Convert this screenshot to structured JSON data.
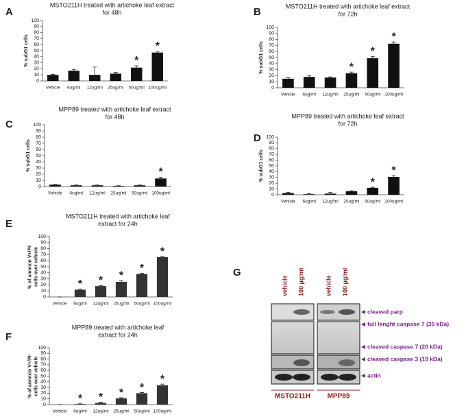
{
  "chart_data": [
    {
      "type": "bar",
      "label": "A",
      "title": [
        "MSTO211H treated with artichoke leaf extract",
        "for 48h"
      ],
      "ylabel": [
        "% subG1 cells"
      ],
      "categories": [
        "Vehicle",
        "6ug/ml",
        "12ug/ml",
        "25ug/ml",
        "50ug/ml",
        "100ug/ml"
      ],
      "values": [
        10,
        17,
        10,
        12,
        22,
        47
      ],
      "errors": [
        1,
        2,
        13,
        2,
        3,
        2
      ],
      "significance_marker": "*",
      "significant": [
        false,
        false,
        false,
        false,
        true,
        true
      ],
      "color": "#111111",
      "ylim": [
        0,
        100
      ],
      "yticks": [
        0,
        10,
        20,
        30,
        40,
        50,
        60,
        70,
        80,
        90,
        100
      ]
    },
    {
      "type": "bar",
      "label": "B",
      "title": [
        "MSTO211H treated with artichoke leaf extract",
        "for 72h"
      ],
      "ylabel": [
        "% subG1 cells"
      ],
      "categories": [
        "Vehicle",
        "6ug/ml",
        "12ug/ml",
        "25ug/ml",
        "50ug/ml",
        "100ug/ml"
      ],
      "values": [
        15,
        18,
        17,
        24,
        49,
        73
      ],
      "errors": [
        2,
        2,
        1,
        2,
        3,
        3
      ],
      "significance_marker": "*",
      "significant": [
        false,
        false,
        false,
        true,
        true,
        true
      ],
      "color": "#111111",
      "ylim": [
        0,
        100
      ],
      "yticks": [
        0,
        10,
        20,
        30,
        40,
        50,
        60,
        70,
        80,
        90,
        100
      ]
    },
    {
      "type": "bar",
      "label": "C",
      "title": [
        "MPP89 treated with artichoke leaf extract",
        "for 48h"
      ],
      "ylabel": [
        "% subG1 cells"
      ],
      "categories": [
        "Vehicle",
        "6ug/ml",
        "12ug/ml",
        "25ug/ml",
        "50ug/ml",
        "100ug/ml"
      ],
      "values": [
        3,
        2,
        2,
        1,
        2,
        13
      ],
      "errors": [
        0.5,
        0.5,
        0.5,
        0.3,
        0.5,
        2
      ],
      "significance_marker": "*",
      "significant": [
        false,
        false,
        false,
        false,
        false,
        true
      ],
      "color": "#111111",
      "ylim": [
        0,
        100
      ],
      "yticks": [
        0,
        10,
        20,
        30,
        40,
        50,
        60,
        70,
        80,
        90,
        100
      ]
    },
    {
      "type": "bar",
      "label": "D",
      "title": [
        "MPP89 treated with artichoke leaf extract",
        "for 72h"
      ],
      "ylabel": [
        "% subG1 cells"
      ],
      "categories": [
        "Vehicle",
        "6ug/ml",
        "12ug/ml",
        "25ug/ml",
        "50ug/ml",
        "100ug/ml"
      ],
      "values": [
        3,
        1,
        2,
        6,
        12,
        31
      ],
      "errors": [
        1,
        1,
        2,
        1,
        1,
        2
      ],
      "significance_marker": "*",
      "significant": [
        false,
        false,
        false,
        false,
        true,
        true
      ],
      "color": "#111111",
      "ylim": [
        0,
        100
      ],
      "yticks": [
        0,
        10,
        20,
        30,
        40,
        50,
        60,
        70,
        80,
        90,
        100
      ]
    },
    {
      "type": "bar",
      "label": "E",
      "title": [
        "MSTO211H treated with artichoke leaf",
        "extract for 24h"
      ],
      "ylabel": [
        "% of annexin V+/PI-",
        "cells over vehicle"
      ],
      "categories": [
        "Vehicle",
        "6ug/ml",
        "12ug/ml",
        "25ug/ml",
        "50ug/ml",
        "100ug/ml"
      ],
      "values": [
        0,
        12,
        18,
        25,
        38,
        66
      ],
      "errors": [
        0,
        1,
        1,
        2,
        1,
        1
      ],
      "significance_marker": "*",
      "significant": [
        false,
        true,
        true,
        true,
        true,
        true
      ],
      "color": "#333333",
      "ylim": [
        0,
        100
      ],
      "yticks": [
        0,
        10,
        20,
        30,
        40,
        50,
        60,
        70,
        80,
        90,
        100
      ]
    },
    {
      "type": "bar",
      "label": "F",
      "title": [
        "MPP89 treated with artichoke leaf",
        "extract for 24h"
      ],
      "ylabel": [
        "% of annexin V+/PI-",
        "cells over vehicle"
      ],
      "categories": [
        "Vehicle",
        "6ug/ml",
        "12ug/ml",
        "25ug/ml",
        "50ug/ml",
        "100ug/ml"
      ],
      "values": [
        0,
        1,
        3,
        11,
        20,
        34
      ],
      "errors": [
        0,
        0.5,
        1,
        1,
        1,
        2
      ],
      "significance_marker": "*",
      "significant": [
        false,
        true,
        true,
        true,
        true,
        true
      ],
      "color": "#333333",
      "ylim": [
        0,
        100
      ],
      "yticks": [
        0,
        10,
        20,
        30,
        40,
        50,
        60,
        70,
        80,
        90,
        100
      ]
    }
  ],
  "blot": {
    "label": "G",
    "lanes": [
      "vehicle",
      "100 µg/ml",
      "vehicle",
      "100 µg/ml"
    ],
    "bands": [
      "cleaved parp",
      "full lenght caspase 7 (35 kDa)",
      "cleaved caspase 7 (20 kDa)",
      "cleaved caspase 3 (19 kDa)",
      "actin"
    ],
    "cell_lines": [
      "MSTO211H",
      "MPP89"
    ]
  }
}
